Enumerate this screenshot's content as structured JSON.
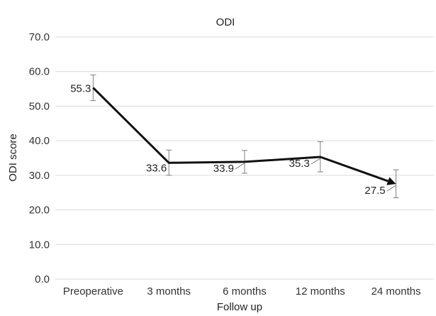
{
  "chart_data": {
    "type": "line",
    "title": "ODI",
    "xlabel": "Follow up",
    "ylabel": "ODI score",
    "categories": [
      "Preoperative",
      "3 months",
      "6 months",
      "12 months",
      "24 months"
    ],
    "series": [
      {
        "values": [
          55.3,
          33.6,
          33.9,
          35.3,
          27.5
        ],
        "error_low": [
          51.6,
          30.0,
          30.6,
          31.0,
          23.5
        ],
        "error_high": [
          59.0,
          37.3,
          37.2,
          39.7,
          31.6
        ],
        "data_labels": [
          "55.3",
          "33.6",
          "33.9",
          "35.3",
          "27.5"
        ],
        "line_color": "#111111",
        "end_marker": "arrow"
      }
    ],
    "ylim": [
      0,
      70
    ],
    "yticks": [
      "0.0",
      "10.0",
      "20.0",
      "30.0",
      "40.0",
      "50.0",
      "60.0",
      "70.0"
    ],
    "grid": true,
    "legend": "none",
    "colors": {
      "grid": "#d9d9d9",
      "line": "#111111",
      "error_bar": "#7f7f7f"
    }
  }
}
